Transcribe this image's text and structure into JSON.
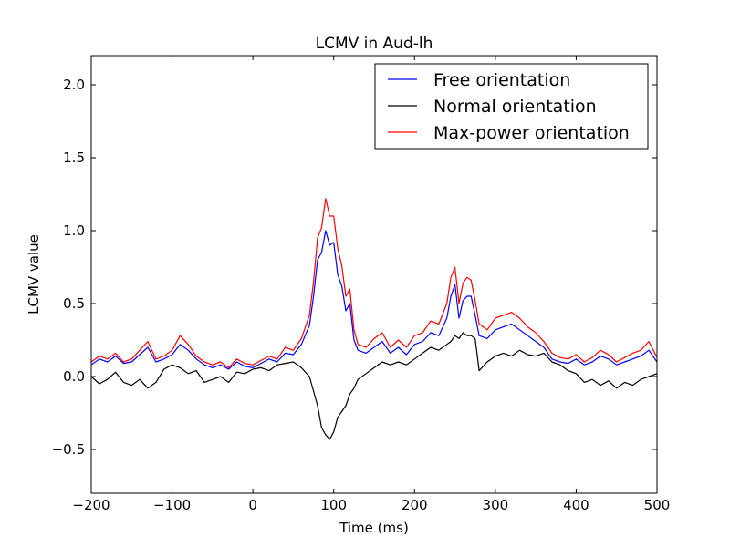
{
  "chart_data": {
    "type": "line",
    "title": "LCMV in Aud-lh",
    "xlabel": "Time (ms)",
    "ylabel": "LCMV value",
    "xlim": [
      -200,
      500
    ],
    "ylim": [
      -0.8,
      2.2
    ],
    "xticks": [
      -200,
      -100,
      0,
      100,
      200,
      300,
      400,
      500
    ],
    "xtick_labels": [
      "−200",
      "−100",
      "0",
      "100",
      "200",
      "300",
      "400",
      "500"
    ],
    "yticks": [
      -0.5,
      0.0,
      0.5,
      1.0,
      1.5,
      2.0
    ],
    "ytick_labels": [
      "−0.5",
      "0.0",
      "0.5",
      "1.0",
      "1.5",
      "2.0"
    ],
    "grid": false,
    "legend_position": "top-right",
    "x": [
      -200,
      -190,
      -180,
      -170,
      -160,
      -150,
      -140,
      -130,
      -120,
      -110,
      -100,
      -90,
      -80,
      -70,
      -60,
      -50,
      -40,
      -30,
      -20,
      -10,
      0,
      10,
      20,
      30,
      40,
      50,
      60,
      70,
      75,
      80,
      85,
      90,
      95,
      100,
      105,
      110,
      115,
      120,
      125,
      130,
      140,
      150,
      160,
      170,
      180,
      190,
      200,
      210,
      220,
      230,
      240,
      245,
      250,
      255,
      260,
      265,
      270,
      275,
      280,
      290,
      300,
      310,
      320,
      330,
      340,
      350,
      360,
      370,
      380,
      390,
      400,
      410,
      420,
      430,
      440,
      450,
      460,
      470,
      480,
      490,
      500
    ],
    "series": [
      {
        "name": "Free orientation",
        "color": "#0000ff",
        "values": [
          0.08,
          0.12,
          0.1,
          0.14,
          0.09,
          0.1,
          0.15,
          0.2,
          0.1,
          0.12,
          0.15,
          0.22,
          0.18,
          0.12,
          0.08,
          0.06,
          0.08,
          0.05,
          0.1,
          0.07,
          0.06,
          0.09,
          0.12,
          0.1,
          0.16,
          0.15,
          0.22,
          0.35,
          0.55,
          0.8,
          0.85,
          1.0,
          0.9,
          0.92,
          0.7,
          0.62,
          0.45,
          0.5,
          0.25,
          0.18,
          0.16,
          0.2,
          0.24,
          0.16,
          0.2,
          0.15,
          0.22,
          0.24,
          0.3,
          0.28,
          0.4,
          0.55,
          0.63,
          0.4,
          0.52,
          0.55,
          0.55,
          0.42,
          0.28,
          0.26,
          0.32,
          0.34,
          0.36,
          0.32,
          0.28,
          0.24,
          0.2,
          0.12,
          0.1,
          0.09,
          0.12,
          0.08,
          0.1,
          0.14,
          0.12,
          0.08,
          0.1,
          0.12,
          0.14,
          0.18,
          0.1
        ]
      },
      {
        "name": "Normal orientation",
        "color": "#000000",
        "values": [
          0.0,
          -0.05,
          -0.02,
          0.03,
          -0.04,
          -0.06,
          -0.02,
          -0.08,
          -0.04,
          0.05,
          0.08,
          0.06,
          0.02,
          0.04,
          -0.04,
          -0.02,
          0.0,
          -0.04,
          0.03,
          0.02,
          0.05,
          0.06,
          0.04,
          0.08,
          0.09,
          0.1,
          0.06,
          0.0,
          -0.1,
          -0.2,
          -0.35,
          -0.4,
          -0.43,
          -0.38,
          -0.28,
          -0.24,
          -0.2,
          -0.12,
          -0.08,
          -0.02,
          0.02,
          0.06,
          0.1,
          0.08,
          0.1,
          0.08,
          0.12,
          0.16,
          0.2,
          0.18,
          0.22,
          0.24,
          0.28,
          0.26,
          0.3,
          0.28,
          0.28,
          0.26,
          0.04,
          0.1,
          0.14,
          0.16,
          0.14,
          0.18,
          0.15,
          0.14,
          0.16,
          0.1,
          0.08,
          0.04,
          0.02,
          -0.04,
          -0.02,
          -0.06,
          -0.03,
          -0.08,
          -0.04,
          -0.06,
          -0.02,
          0.0,
          0.02
        ]
      },
      {
        "name": "Max-power orientation",
        "color": "#ff0000",
        "values": [
          0.1,
          0.14,
          0.12,
          0.16,
          0.1,
          0.12,
          0.18,
          0.24,
          0.12,
          0.14,
          0.18,
          0.28,
          0.22,
          0.14,
          0.1,
          0.08,
          0.1,
          0.06,
          0.12,
          0.09,
          0.08,
          0.11,
          0.14,
          0.12,
          0.2,
          0.18,
          0.26,
          0.42,
          0.65,
          0.95,
          1.02,
          1.22,
          1.1,
          1.1,
          0.88,
          0.76,
          0.55,
          0.6,
          0.32,
          0.22,
          0.2,
          0.26,
          0.3,
          0.2,
          0.25,
          0.2,
          0.28,
          0.3,
          0.38,
          0.36,
          0.5,
          0.68,
          0.75,
          0.5,
          0.64,
          0.68,
          0.66,
          0.52,
          0.36,
          0.32,
          0.4,
          0.42,
          0.44,
          0.4,
          0.34,
          0.3,
          0.24,
          0.16,
          0.13,
          0.12,
          0.15,
          0.1,
          0.13,
          0.18,
          0.15,
          0.1,
          0.13,
          0.16,
          0.18,
          0.24,
          0.13
        ]
      }
    ]
  }
}
